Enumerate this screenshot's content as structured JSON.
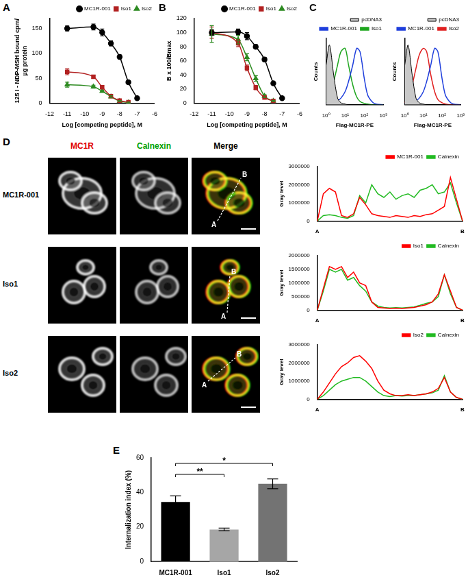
{
  "chart_data": [
    {
      "panel": "A",
      "type": "line",
      "xlabel": "Log [competing peptide], M",
      "ylabel": [
        "125 I - NDP-MSH bound cpm/",
        "µg protein"
      ],
      "xlim": [
        -12,
        -6
      ],
      "xticks": [
        -12,
        -11,
        -10,
        -9,
        -8,
        -7,
        -6
      ],
      "ylim": [
        0,
        170
      ],
      "yticks": [
        0,
        50,
        100,
        150
      ],
      "grid": false,
      "legend": "upper right",
      "series": [
        {
          "name": "MC1R-001",
          "color": "#000000",
          "marker": "circle",
          "x": [
            -11,
            -9.5,
            -9,
            -8.5,
            -8,
            -7.5,
            -7
          ],
          "values": [
            150,
            153,
            142,
            120,
            93,
            42,
            10
          ],
          "errors": [
            5,
            6,
            7,
            5,
            4,
            3,
            2
          ]
        },
        {
          "name": "Iso1",
          "color": "#b22222",
          "marker": "square",
          "x": [
            -11,
            -9.5,
            -9,
            -8.5,
            -8,
            -7.5
          ],
          "values": [
            63,
            53,
            32,
            14,
            5,
            2
          ],
          "errors": [
            6,
            3,
            3,
            2,
            1,
            1
          ]
        },
        {
          "name": "Iso2",
          "color": "#2e8b22",
          "marker": "triangle",
          "x": [
            -11,
            -9.5,
            -9,
            -8.5,
            -8,
            -7.5
          ],
          "values": [
            37,
            33,
            24,
            13,
            4,
            1
          ],
          "errors": [
            5,
            3,
            2,
            2,
            1,
            1
          ]
        }
      ]
    },
    {
      "panel": "B",
      "type": "line",
      "xlabel": "Log [competing peptide], M",
      "ylabel": "B x 100/Bmax",
      "xlim": [
        -12,
        -6
      ],
      "xticks": [
        -12,
        -11,
        -10,
        -9,
        -8,
        -7,
        -6
      ],
      "ylim": [
        0,
        120
      ],
      "yticks": [
        0,
        20,
        40,
        60,
        80,
        100,
        120
      ],
      "grid": false,
      "legend": "upper right",
      "series": [
        {
          "name": "MC1R-001",
          "color": "#000000",
          "marker": "circle",
          "x": [
            -11,
            -9.5,
            -9,
            -8.5,
            -8,
            -7.5,
            -7
          ],
          "values": [
            100,
            101,
            95,
            80,
            62,
            28,
            7
          ],
          "errors": [
            4,
            4,
            5,
            3,
            3,
            2,
            1
          ]
        },
        {
          "name": "Iso1",
          "color": "#b22222",
          "marker": "square",
          "x": [
            -11,
            -9.5,
            -9,
            -8.5,
            -8,
            -7.5
          ],
          "values": [
            100,
            85,
            50,
            22,
            8,
            3
          ],
          "errors": [
            8,
            5,
            4,
            3,
            2,
            1
          ]
        },
        {
          "name": "Iso2",
          "color": "#2e8b22",
          "marker": "triangle",
          "x": [
            -11,
            -9.5,
            -9,
            -8.5,
            -8,
            -7.5
          ],
          "values": [
            98,
            90,
            65,
            35,
            10,
            3
          ],
          "errors": [
            12,
            6,
            5,
            4,
            2,
            1
          ]
        }
      ]
    },
    {
      "panel": "C",
      "type": "line",
      "log": "x",
      "xlabel": "Flag-MC1R-PE",
      "ylabel": "Counts",
      "tick_labels": "x",
      "xlim": [
        1,
        1000
      ],
      "xticks": [
        {
          "value": 1,
          "label": "10⁰"
        },
        {
          "value": 10,
          "label": "10¹"
        },
        {
          "value": 100,
          "label": "10²"
        },
        {
          "value": 1000,
          "label": "10³"
        }
      ],
      "ylim": [
        0,
        100
      ],
      "grid": false,
      "legend": "upper right",
      "x": [
        1,
        1.5,
        2.5,
        4,
        6,
        10,
        15,
        25,
        40,
        60,
        100,
        150,
        250,
        400,
        1000
      ],
      "series": [
        {
          "name": "pcDNA3",
          "color": "#000000",
          "type": "area",
          "values": [
            60,
            90,
            45,
            10,
            3,
            1,
            0,
            0,
            0,
            0,
            0,
            0,
            0,
            0,
            0
          ]
        },
        {
          "name": "MC1R-001",
          "color": "#1f3fdc",
          "type": "line",
          "values": [
            2,
            3,
            4,
            6,
            10,
            20,
            35,
            60,
            85,
            80,
            40,
            15,
            5,
            1,
            0
          ]
        },
        {
          "name": "Iso1",
          "color": "#1fa61f",
          "type": "line",
          "values": [
            5,
            15,
            35,
            60,
            80,
            85,
            60,
            30,
            12,
            5,
            2,
            1,
            0,
            0,
            0
          ]
        }
      ]
    },
    {
      "type": "line",
      "log": "x",
      "xlabel": "Flag-MC1R-PE",
      "ylabel": "Counts",
      "tick_labels": "x",
      "xlim": [
        1,
        1000
      ],
      "xticks": [
        {
          "value": 1,
          "label": "10⁰"
        },
        {
          "value": 10,
          "label": "10¹"
        },
        {
          "value": 100,
          "label": "10²"
        },
        {
          "value": 1000,
          "label": "10³"
        }
      ],
      "ylim": [
        0,
        100
      ],
      "grid": false,
      "legend": "upper right",
      "x": [
        1,
        1.5,
        2.5,
        4,
        6,
        10,
        15,
        25,
        40,
        60,
        100,
        150,
        250,
        400,
        1000
      ],
      "series": [
        {
          "name": "pcDNA3",
          "color": "#000000",
          "type": "area",
          "values": [
            60,
            90,
            45,
            10,
            3,
            1,
            0,
            0,
            0,
            0,
            0,
            0,
            0,
            0,
            0
          ]
        },
        {
          "name": "MC1R-001",
          "color": "#1f3fdc",
          "type": "line",
          "values": [
            2,
            3,
            4,
            6,
            10,
            20,
            35,
            60,
            85,
            80,
            40,
            15,
            5,
            1,
            0
          ]
        },
        {
          "name": "Iso2",
          "color": "#e02020",
          "type": "line",
          "values": [
            3,
            10,
            30,
            55,
            75,
            85,
            80,
            45,
            20,
            8,
            3,
            1,
            0,
            0,
            0
          ]
        }
      ]
    },
    {
      "type": "line",
      "ylabel": "Gray level",
      "ylim": [
        0,
        3000000
      ],
      "yticks": [
        0,
        1000000,
        2000000,
        3000000
      ],
      "grid": false,
      "legend": "upper right",
      "categories": [
        "A",
        null,
        null,
        null,
        null,
        null,
        null,
        null,
        null,
        null,
        null,
        null,
        null,
        null,
        null,
        null,
        null,
        null,
        null,
        null,
        null,
        null,
        null,
        null,
        "B"
      ],
      "series": [
        {
          "name": "MC1R-001",
          "color": "#ff0000",
          "values": [
            0,
            1500000,
            1800000,
            1600000,
            300000,
            200000,
            400000,
            1300000,
            900000,
            400000,
            300000,
            250000,
            200000,
            300000,
            250000,
            200000,
            300000,
            250000,
            350000,
            400000,
            600000,
            800000,
            2400000,
            1200000,
            0
          ]
        },
        {
          "name": "Calnexin",
          "color": "#22bb22",
          "values": [
            0,
            300000,
            350000,
            300000,
            200000,
            150000,
            300000,
            1400000,
            1000000,
            2000000,
            1500000,
            1300000,
            1600000,
            1200000,
            1400000,
            1500000,
            1300000,
            1700000,
            1800000,
            2000000,
            1500000,
            1600000,
            2100000,
            1000000,
            0
          ]
        }
      ]
    },
    {
      "type": "line",
      "ylabel": "Gray level",
      "ylim": [
        0,
        2000000
      ],
      "yticks": [
        0,
        500000,
        1000000,
        1500000,
        2000000
      ],
      "grid": false,
      "legend": "upper right",
      "categories": [
        "A",
        null,
        null,
        null,
        null,
        null,
        null,
        null,
        null,
        null,
        null,
        null,
        null,
        null,
        null,
        null,
        null,
        null,
        null,
        null,
        null,
        null,
        null,
        null,
        "B"
      ],
      "series": [
        {
          "name": "Iso1",
          "color": "#ff0000",
          "values": [
            0,
            800000,
            1600000,
            1500000,
            1600000,
            1200000,
            1400000,
            1000000,
            900000,
            300000,
            100000,
            80000,
            60000,
            70000,
            60000,
            80000,
            100000,
            150000,
            200000,
            300000,
            600000,
            1300000,
            700000,
            100000,
            0
          ]
        },
        {
          "name": "Calnexin",
          "color": "#22bb22",
          "values": [
            0,
            700000,
            1500000,
            1400000,
            1500000,
            1100000,
            1200000,
            900000,
            700000,
            300000,
            150000,
            100000,
            80000,
            90000,
            80000,
            100000,
            120000,
            180000,
            250000,
            300000,
            500000,
            1300000,
            600000,
            100000,
            0
          ]
        }
      ]
    },
    {
      "type": "line",
      "ylabel": "Gray level",
      "ylim": [
        0,
        3000000
      ],
      "yticks": [
        0,
        1000000,
        2000000,
        3000000
      ],
      "grid": false,
      "legend": "upper right",
      "categories": [
        "A",
        null,
        null,
        null,
        null,
        null,
        null,
        null,
        null,
        null,
        null,
        null,
        null,
        null,
        null,
        null,
        null,
        null,
        null,
        null,
        null,
        null,
        null,
        null,
        "B"
      ],
      "series": [
        {
          "name": "Iso2",
          "color": "#ff0000",
          "values": [
            0,
            400000,
            900000,
            1400000,
            1800000,
            2000000,
            2300000,
            2400000,
            2100000,
            1700000,
            1000000,
            500000,
            300000,
            200000,
            200000,
            250000,
            200000,
            250000,
            300000,
            400000,
            600000,
            1200000,
            400000,
            100000,
            0
          ]
        },
        {
          "name": "Calnexin",
          "color": "#22bb22",
          "values": [
            0,
            200000,
            500000,
            800000,
            1000000,
            1100000,
            1200000,
            1200000,
            1000000,
            700000,
            400000,
            200000,
            150000,
            200000,
            180000,
            200000,
            200000,
            250000,
            300000,
            350000,
            500000,
            1300000,
            400000,
            100000,
            0
          ]
        }
      ]
    },
    {
      "panel": "E",
      "type": "bar",
      "ylabel": "Internalization index (%)",
      "ylim": [
        0,
        60
      ],
      "yticks": [
        0,
        20,
        40,
        60
      ],
      "grid": false,
      "categories": [
        "MC1R-001",
        "Iso1",
        "Iso2"
      ],
      "values": [
        34.5,
        18.5,
        45
      ],
      "errors": [
        3.5,
        0.8,
        2.8
      ],
      "colors": [
        "#000000",
        "#a6a6a6",
        "#737373"
      ],
      "annotations": [
        {
          "text": "**",
          "from": "MC1R-001",
          "to": "Iso1"
        },
        {
          "text": "*",
          "from": "MC1R-001",
          "to": "Iso2"
        }
      ]
    }
  ],
  "images": {
    "panel": "D",
    "columns": [
      "MC1R",
      "Calnexin",
      "Merge"
    ],
    "rows": [
      "MC1R-001",
      "Iso1",
      "Iso2"
    ],
    "line_ends": [
      "A",
      "B"
    ]
  }
}
